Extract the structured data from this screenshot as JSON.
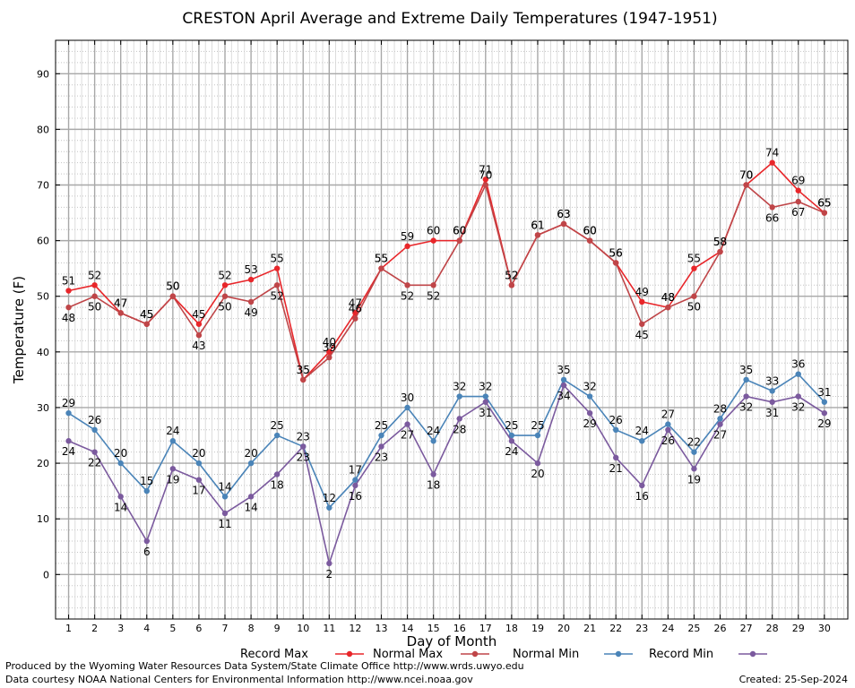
{
  "chart_data": {
    "type": "line",
    "title": "CRESTON April Average and Extreme Daily Temperatures (1947-1951)",
    "xlabel": "Day of Month",
    "ylabel": "Temperature (F)",
    "ylim": [
      -8,
      96
    ],
    "yticks": [
      0,
      10,
      20,
      30,
      40,
      50,
      60,
      70,
      80,
      90
    ],
    "x": [
      1,
      2,
      3,
      4,
      5,
      6,
      7,
      8,
      9,
      10,
      11,
      12,
      13,
      14,
      15,
      16,
      17,
      18,
      19,
      20,
      21,
      22,
      23,
      24,
      25,
      26,
      27,
      28,
      29,
      30
    ],
    "grid": true,
    "series": [
      {
        "name": "Record Max",
        "color": "#e8262a",
        "values": [
          51,
          52,
          47,
          45,
          50,
          45,
          52,
          53,
          55,
          35,
          40,
          47,
          55,
          59,
          60,
          60,
          71,
          52,
          61,
          63,
          60,
          56,
          49,
          48,
          55,
          58,
          70,
          74,
          69,
          65
        ]
      },
      {
        "name": "Normal Max",
        "color": "#bf4548",
        "values": [
          48,
          50,
          47,
          45,
          50,
          43,
          50,
          49,
          52,
          35,
          39,
          46,
          55,
          52,
          52,
          60,
          70,
          52,
          61,
          63,
          60,
          56,
          45,
          48,
          50,
          58,
          70,
          66,
          67,
          65
        ]
      },
      {
        "name": "Normal Min",
        "color": "#4a84b8",
        "values": [
          29,
          26,
          20,
          15,
          24,
          20,
          14,
          20,
          25,
          23,
          12,
          17,
          25,
          30,
          24,
          32,
          32,
          25,
          25,
          35,
          32,
          26,
          24,
          27,
          22,
          28,
          35,
          33,
          36,
          31
        ]
      },
      {
        "name": "Record Min",
        "color": "#7b5a9e",
        "values": [
          24,
          22,
          14,
          6,
          19,
          17,
          11,
          14,
          18,
          23,
          2,
          16,
          23,
          27,
          18,
          28,
          31,
          24,
          20,
          34,
          29,
          21,
          16,
          26,
          19,
          27,
          32,
          31,
          32,
          29
        ]
      }
    ]
  },
  "footer": {
    "produced_by": "Produced by the Wyoming Water Resources Data System/State Climate Office http://www.wrds.uwyo.edu",
    "data_courtesy": "Data courtesy NOAA National Centers for Environmental Information http://www.ncei.noaa.gov",
    "created": "Created:  25-Sep-2024"
  }
}
